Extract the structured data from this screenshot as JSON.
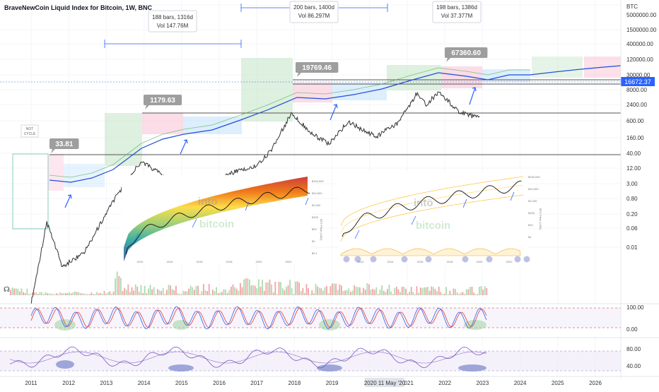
{
  "header": {
    "title": "BraveNewCoin Liquid Index for Bitcoin, 1W, BNC"
  },
  "axis": {
    "currency": "BTC",
    "price_labels": [
      "5000000.00",
      "1500000.00",
      "400000.00",
      "120000.00",
      "30000.00",
      "8000.00",
      "2400.00",
      "600.00",
      "160.00",
      "40.00",
      "12.00",
      "3.00",
      "0.80",
      "0.20",
      "0.06",
      "0.01"
    ],
    "current_price": "16672.37",
    "stoch_labels": [
      "100.00",
      "0.00"
    ],
    "rsi_labels": [
      "80.00",
      "40.00"
    ],
    "years": [
      "2011",
      "2012",
      "2013",
      "2014",
      "2015",
      "2016",
      "2017",
      "2018",
      "2019",
      "2020",
      "2021",
      "2022",
      "2023",
      "2024",
      "2025",
      "2026"
    ],
    "crosshair_date": "2020 11 May '20"
  },
  "measures": [
    {
      "bars": "188 bars, 1316d",
      "vol": "Vol 147.76M"
    },
    {
      "bars": "200 bars, 1400d",
      "vol": "Vol 86.297M"
    },
    {
      "bars": "198 bars, 1386d",
      "vol": "Vol 37.377M"
    }
  ],
  "peaks": [
    "33.81",
    "1179.63",
    "19769.46",
    "67360.60"
  ],
  "labels": {
    "not_cycle": [
      "NOT",
      "CYCLE"
    ]
  },
  "inset_left": {
    "watermark_top": "into",
    "watermark_bottom": "bitcoin",
    "x_labels": [
      "2012",
      "2014",
      "2016",
      "2018",
      "2020",
      "2022"
    ],
    "y_labels": [
      "$100,000",
      "$10,000",
      "$1,000",
      "$100",
      "$10",
      "$1",
      "$0.1"
    ],
    "ylabel": "BTC Price (USD)"
  },
  "inset_right": {
    "watermark_top": "into",
    "watermark_bottom": "bitcoin",
    "x_labels": [
      "2012",
      "2014",
      "2016",
      "2018",
      "2020",
      "2022"
    ],
    "y_labels": [
      "$100,000",
      "$10,000",
      "$1,000",
      "$100",
      "$10",
      "$1"
    ],
    "ylabel": "BTC Price (USD)"
  },
  "colors": {
    "bull": "#4caf50",
    "bear": "#ef5350",
    "accumulation": "#2196f3",
    "stoch_k": "#2962ff",
    "stoch_d": "#e53935",
    "rsi": "#7e57c2",
    "ma": "#1e4fd8"
  },
  "chart_data": {
    "type": "line",
    "title": "BraveNewCoin Liquid Index for Bitcoin, 1W, BNC",
    "scale": "log",
    "series": [
      {
        "name": "",
        "x": [
          "2011-01",
          "2011-06",
          "2011-11",
          "2012-06",
          "2013-04",
          "2013-12",
          "2014-06",
          "2015-01",
          "2015-06",
          "2016-01",
          "2016-06",
          "2017-01",
          "2017-06",
          "2017-12",
          "2018-06",
          "2018-12",
          "2019-06",
          "2020-03",
          "2020-10",
          "2021-04",
          "2021-07",
          "2021-11",
          "2022-06",
          "2022-11",
          "2022-12"
        ],
        "values": [
          0.3,
          33.81,
          2.5,
          6,
          150,
          1179.63,
          600,
          200,
          240,
          400,
          650,
          900,
          2500,
          19769.46,
          6500,
          3200,
          12000,
          5000,
          11000,
          60000,
          32000,
          67360.6,
          20000,
          15800,
          16672.37
        ]
      }
    ],
    "peaks": [
      {
        "x": "2011-06",
        "value": 33.81
      },
      {
        "x": "2013-12",
        "value": 1179.63
      },
      {
        "x": "2017-12",
        "value": 19769.46
      },
      {
        "x": "2021-11",
        "value": 67360.6
      }
    ],
    "horizontal_levels": [
      30,
      2400,
      16672.37
    ],
    "ylim": [
      0.01,
      5000000
    ],
    "xlim": [
      "2011",
      "2026"
    ]
  }
}
